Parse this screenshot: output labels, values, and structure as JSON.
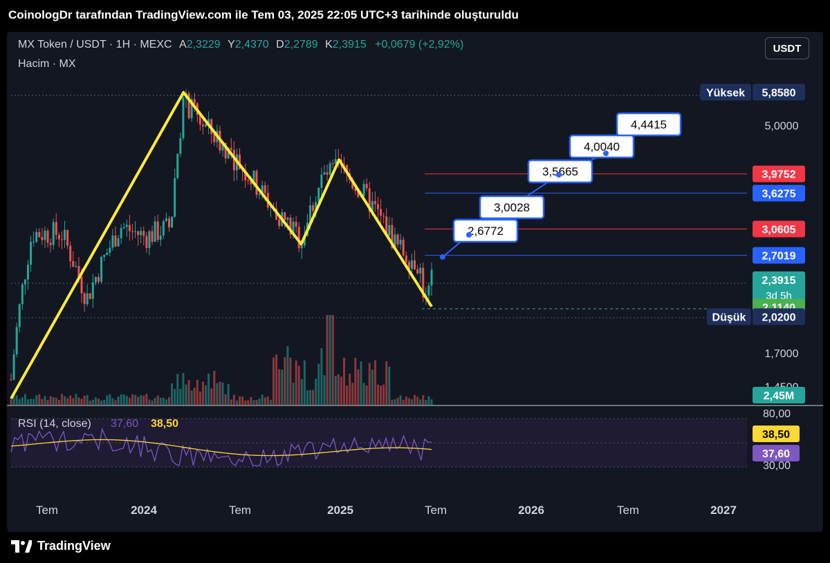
{
  "header": {
    "title": "CoinologDr tarafından TradingView.com ile Tem 03, 2025 22:05 UTC+3 tarihinde oluşturuldu"
  },
  "legend": {
    "symbol": "MX Token / USDT · 1H · MEXC",
    "open_key": "A",
    "open": "2,3229",
    "high_key": "Y",
    "high": "2,4370",
    "low_key": "D",
    "low": "2,2789",
    "close_key": "K",
    "close": "2,3915",
    "change": "+0,0679 (+2,92%)",
    "volume_line": "Hacim · MX"
  },
  "currency_button": "USDT",
  "footer": {
    "brand": "TradingView"
  },
  "colors": {
    "background": "#131722",
    "up": "#26a69a",
    "down": "#ef5350",
    "pattern": "#ffeb3b",
    "target": "#2962ff",
    "rsi": "#7e57c2",
    "rsi_ma": "#fdd835"
  },
  "chart_data": {
    "type": "candlestick",
    "ylim": [
      1.33,
      6.0
    ],
    "price_ticks": [
      "5,0000",
      "1,7000",
      "1,4500"
    ],
    "x_ticks": [
      "Tem",
      "2024",
      "Tem",
      "2025",
      "Tem",
      "2026",
      "Tem",
      "2027"
    ],
    "price_labels": [
      {
        "prefix": "Yüksek",
        "text": "5,8580",
        "value": 5.858,
        "color": "#1e2f5c"
      },
      {
        "prefix": "",
        "text": "3,9752",
        "value": 3.9752,
        "color": "#f23645"
      },
      {
        "prefix": "",
        "text": "3,6275",
        "value": 3.6275,
        "color": "#2962ff"
      },
      {
        "prefix": "",
        "text": "3,0605",
        "value": 3.0605,
        "color": "#f23645"
      },
      {
        "prefix": "",
        "text": "2,7019",
        "value": 2.7019,
        "color": "#2962ff"
      },
      {
        "prefix": "",
        "text": "2,3915",
        "sub": "3d 5h",
        "value": 2.3915,
        "color": "#26a69a"
      },
      {
        "prefix": "",
        "text": "2,1140",
        "value": 2.114,
        "color": "#4caf50"
      },
      {
        "prefix": "Düşük",
        "text": "2,0200",
        "value": 2.02,
        "color": "#1e2f5c"
      }
    ],
    "horizontal_levels": [
      {
        "value": 3.9752,
        "color": "#f23645"
      },
      {
        "value": 3.6275,
        "color": "#2962ff"
      },
      {
        "value": 3.0605,
        "color": "#f23645"
      },
      {
        "value": 2.7019,
        "color": "#2962ff"
      }
    ],
    "targets": [
      "2,6772",
      "3,0028",
      "3,5665",
      "4,0040",
      "4,4415"
    ],
    "volume_label": "2,45M",
    "rsi": {
      "label": "RSI (14, close)",
      "value": "37,60",
      "ma_value": "38,50",
      "ticks": [
        "80,00",
        "30,00"
      ],
      "value_label": "37,60",
      "ma_label": "38,50"
    },
    "pattern": "double top",
    "pattern_points": [
      {
        "t": 0.0,
        "p": 1.37
      },
      {
        "t": 0.41,
        "p": 5.85
      },
      {
        "t": 0.69,
        "p": 2.85
      },
      {
        "t": 0.78,
        "p": 4.25
      },
      {
        "t": 1.0,
        "p": 2.12
      }
    ],
    "trend_anchors": [
      {
        "t": 0.0,
        "p": 1.5
      },
      {
        "t": 0.05,
        "p": 3.0
      },
      {
        "t": 0.12,
        "p": 3.0
      },
      {
        "t": 0.18,
        "p": 2.2
      },
      {
        "t": 0.26,
        "p": 3.1
      },
      {
        "t": 0.32,
        "p": 2.95
      },
      {
        "t": 0.38,
        "p": 3.1
      },
      {
        "t": 0.41,
        "p": 5.6
      },
      {
        "t": 0.46,
        "p": 5.0
      },
      {
        "t": 0.55,
        "p": 4.1
      },
      {
        "t": 0.62,
        "p": 3.4
      },
      {
        "t": 0.69,
        "p": 2.9
      },
      {
        "t": 0.74,
        "p": 3.9
      },
      {
        "t": 0.78,
        "p": 4.1
      },
      {
        "t": 0.85,
        "p": 3.5
      },
      {
        "t": 0.92,
        "p": 2.8
      },
      {
        "t": 0.97,
        "p": 2.6
      },
      {
        "t": 0.985,
        "p": 2.14
      },
      {
        "t": 1.0,
        "p": 2.39
      }
    ]
  }
}
